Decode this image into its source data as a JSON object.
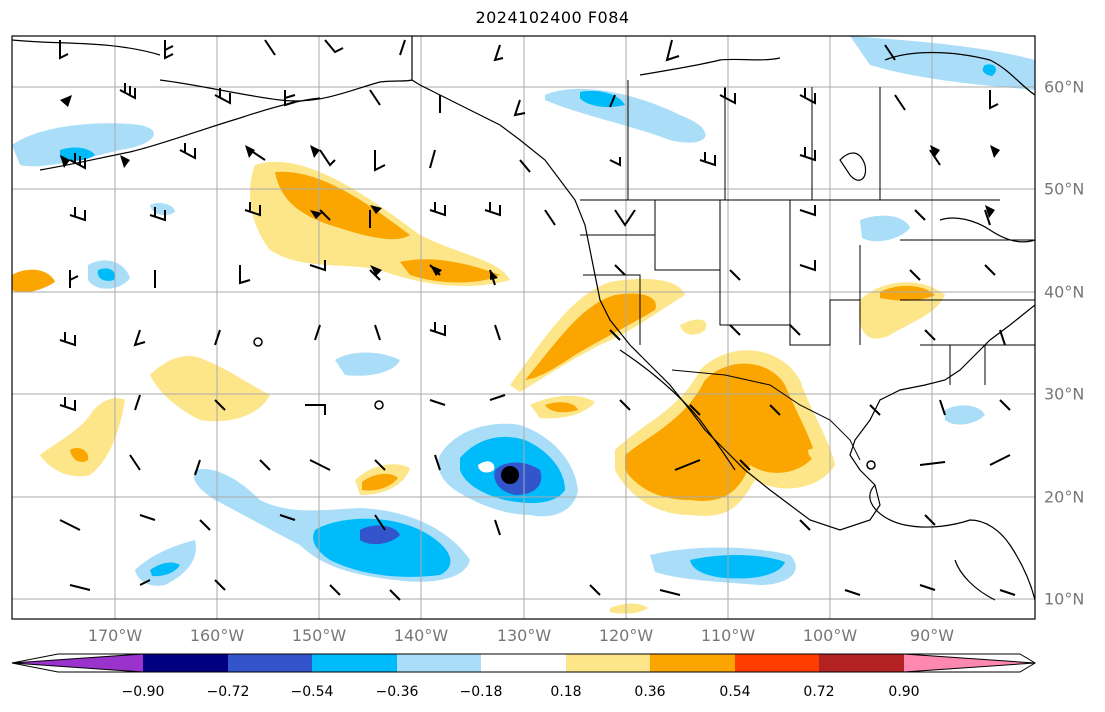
{
  "title": "2024102400 F084",
  "longitude_labels": [
    "170°W",
    "160°W",
    "150°W",
    "140°W",
    "130°W",
    "120°W",
    "110°W",
    "100°W",
    "90°W"
  ],
  "latitude_labels": [
    "60°N",
    "50°N",
    "40°N",
    "30°N",
    "20°N",
    "10°N"
  ],
  "colorbar": {
    "colors": [
      "#9933cc",
      "#000080",
      "#3355cc",
      "#00bbf9",
      "#aadef8",
      "#ffffff",
      "#fde68a",
      "#fba500",
      "#ff3d00",
      "#b22222",
      "#ff88b0"
    ],
    "tick_labels": [
      "−0.90",
      "−0.72",
      "−0.54",
      "−0.36",
      "−0.18",
      "0.18",
      "0.36",
      "0.54",
      "0.72",
      "0.90"
    ]
  },
  "colors": {
    "coast": "#000000",
    "grid": "#aaaaaa",
    "label": "#777777"
  }
}
